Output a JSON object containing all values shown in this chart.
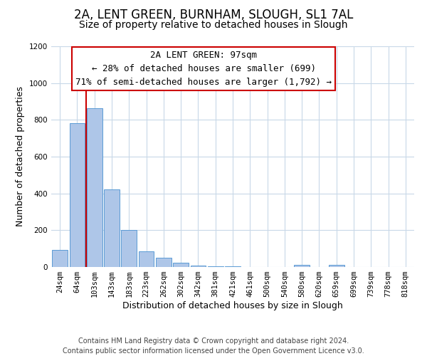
{
  "title": "2A, LENT GREEN, BURNHAM, SLOUGH, SL1 7AL",
  "subtitle": "Size of property relative to detached houses in Slough",
  "xlabel": "Distribution of detached houses by size in Slough",
  "ylabel": "Number of detached properties",
  "bar_labels": [
    "24sqm",
    "64sqm",
    "103sqm",
    "143sqm",
    "183sqm",
    "223sqm",
    "262sqm",
    "302sqm",
    "342sqm",
    "381sqm",
    "421sqm",
    "461sqm",
    "500sqm",
    "540sqm",
    "580sqm",
    "620sqm",
    "659sqm",
    "699sqm",
    "739sqm",
    "778sqm",
    "818sqm"
  ],
  "bar_values": [
    93,
    783,
    862,
    422,
    201,
    84,
    52,
    22,
    8,
    3,
    2,
    0,
    0,
    0,
    10,
    0,
    10,
    0,
    0,
    0,
    0
  ],
  "bar_color": "#aec6e8",
  "bar_edge_color": "#5b9bd5",
  "property_line_color": "#cc0000",
  "annotation_line1": "2A LENT GREEN: 97sqm",
  "annotation_line2": "← 28% of detached houses are smaller (699)",
  "annotation_line3": "71% of semi-detached houses are larger (1,792) →",
  "annotation_box_edgecolor": "#cc0000",
  "ylim": [
    0,
    1200
  ],
  "yticks": [
    0,
    200,
    400,
    600,
    800,
    1000,
    1200
  ],
  "footer_line1": "Contains HM Land Registry data © Crown copyright and database right 2024.",
  "footer_line2": "Contains public sector information licensed under the Open Government Licence v3.0.",
  "bg_color": "#ffffff",
  "grid_color": "#c8d8e8",
  "title_fontsize": 12,
  "subtitle_fontsize": 10,
  "axis_label_fontsize": 9,
  "tick_fontsize": 7.5,
  "annotation_fontsize": 9,
  "footer_fontsize": 7
}
